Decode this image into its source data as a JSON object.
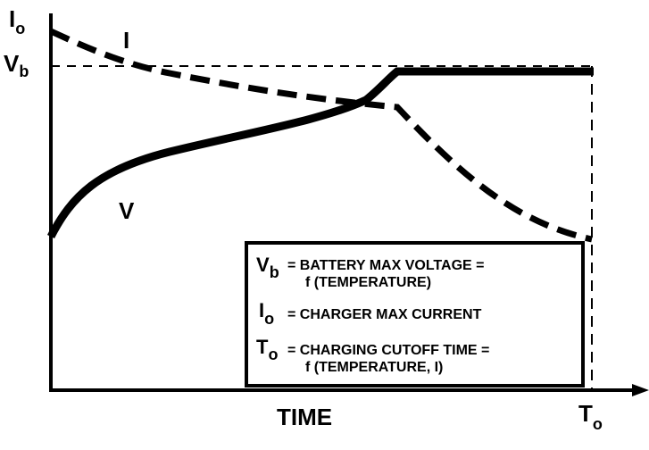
{
  "y_axis": {
    "top_label": {
      "main": "I",
      "sub": "o"
    },
    "dashed_label": {
      "main": "V",
      "sub": "b"
    }
  },
  "x_axis": {
    "label": "TIME",
    "end_label": {
      "main": "T",
      "sub": "o"
    }
  },
  "curves": [
    {
      "label": "I"
    },
    {
      "label": "V"
    }
  ],
  "legend": [
    {
      "symbol": {
        "main": "V",
        "sub": "b"
      },
      "text": [
        "= BATTERY MAX VOLTAGE =",
        "f (TEMPERATURE)"
      ]
    },
    {
      "symbol": {
        "main": "I",
        "sub": "o"
      },
      "text": [
        "= CHARGER MAX CURRENT"
      ]
    },
    {
      "symbol": {
        "main": "T",
        "sub": "o"
      },
      "text": [
        "= CHARGING CUTOFF TIME =",
        "f (TEMPERATURE, I)"
      ]
    }
  ]
}
